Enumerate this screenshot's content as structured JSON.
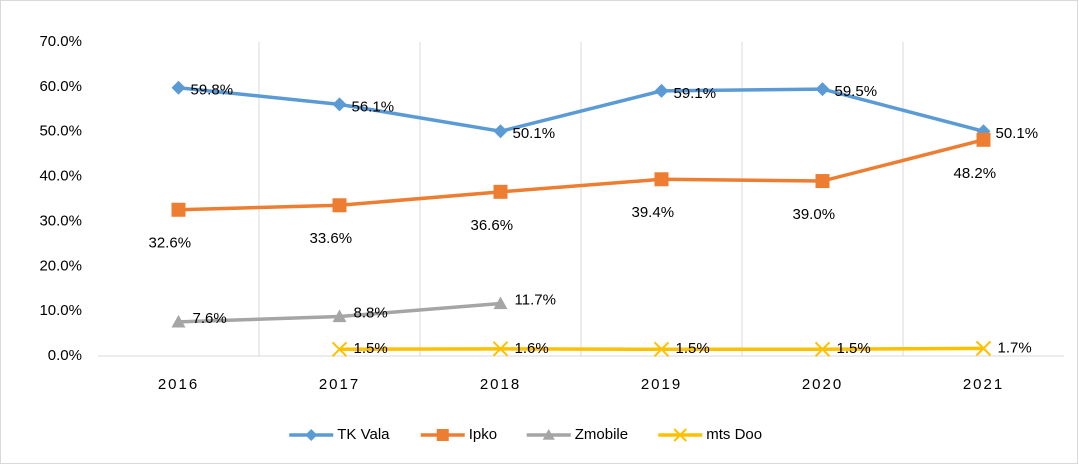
{
  "chart_data": {
    "type": "line",
    "categories": [
      "2016",
      "2017",
      "2018",
      "2019",
      "2020",
      "2021"
    ],
    "series": [
      {
        "name": "TK Vala",
        "color": "#5b9bd5",
        "marker": "diamond",
        "values": [
          59.8,
          56.1,
          50.1,
          59.1,
          59.5,
          50.1
        ],
        "value_labels": [
          "59.8%",
          "56.1%",
          "50.1%",
          "59.1%",
          "59.5%",
          "50.1%"
        ]
      },
      {
        "name": "Ipko",
        "color": "#ed7d31",
        "marker": "square",
        "values": [
          32.6,
          33.6,
          36.6,
          39.4,
          39.0,
          48.2
        ],
        "value_labels": [
          "32.6%",
          "33.6%",
          "36.6%",
          "39.4%",
          "39.0%",
          "48.2%"
        ]
      },
      {
        "name": "Zmobile",
        "color": "#a5a5a5",
        "marker": "triangle",
        "values": [
          7.6,
          8.8,
          11.7,
          null,
          null,
          null
        ],
        "value_labels": [
          "7.6%",
          "8.8%",
          "11.7%",
          null,
          null,
          null
        ]
      },
      {
        "name": "mts Doo",
        "color": "#ffc000",
        "marker": "x",
        "values": [
          null,
          1.5,
          1.6,
          1.5,
          1.5,
          1.7
        ],
        "value_labels": [
          null,
          "1.5%",
          "1.6%",
          "1.5%",
          "1.5%",
          "1.7%"
        ]
      }
    ],
    "ylim": [
      0,
      70
    ],
    "yticks": [
      {
        "value": 0,
        "label": "0.0%"
      },
      {
        "value": 10,
        "label": "10.0%"
      },
      {
        "value": 20,
        "label": "20.0%"
      },
      {
        "value": 30,
        "label": "30.0%"
      },
      {
        "value": 40,
        "label": "40.0%"
      },
      {
        "value": 50,
        "label": "50.0%"
      },
      {
        "value": 60,
        "label": "60.0%"
      },
      {
        "value": 70,
        "label": "70.0%"
      }
    ],
    "legend": "bottom"
  }
}
